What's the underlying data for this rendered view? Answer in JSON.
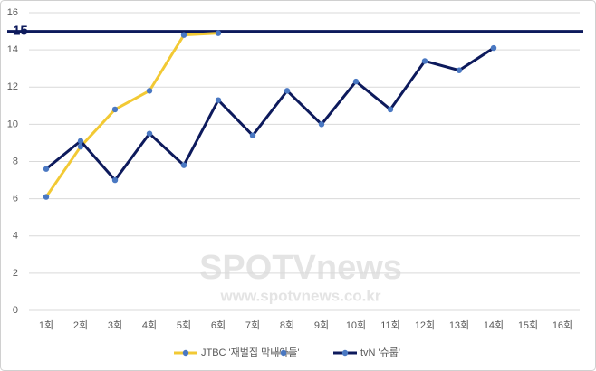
{
  "chart_data": {
    "type": "line",
    "categories": [
      "1회",
      "2회",
      "3회",
      "4회",
      "5회",
      "6회",
      "7회",
      "8회",
      "9회",
      "10회",
      "11회",
      "12회",
      "13회",
      "14회",
      "15회",
      "16회"
    ],
    "series": [
      {
        "name": "JTBC '재벌집 막내아들'",
        "color": "#f2c934",
        "values": [
          6.1,
          8.8,
          10.8,
          11.8,
          14.8,
          14.9,
          null,
          null,
          null,
          null,
          null,
          null,
          null,
          null,
          null,
          null
        ]
      },
      {
        "color": "#a5a5a5",
        "values": [
          null,
          null,
          null,
          null,
          null,
          null,
          null,
          null,
          null,
          null,
          null,
          null,
          null,
          null,
          null,
          null
        ]
      },
      {
        "name": "tvN '슈룹'",
        "color": "#0d1a5c",
        "values": [
          7.6,
          9.1,
          7.0,
          9.5,
          7.8,
          11.3,
          9.4,
          11.8,
          10.0,
          12.3,
          10.8,
          13.4,
          12.9,
          14.1,
          null,
          null
        ]
      }
    ],
    "reference_line": {
      "value": 15,
      "color": "#0d1a5c"
    },
    "ylim": [
      0,
      16
    ],
    "yticks": [
      0,
      2,
      4,
      6,
      8,
      10,
      12,
      14,
      16
    ],
    "grid": true,
    "legend": "bottom",
    "watermark": {
      "brand": "SPOTVnews",
      "url": "www.spotvnews.co.kr"
    }
  }
}
